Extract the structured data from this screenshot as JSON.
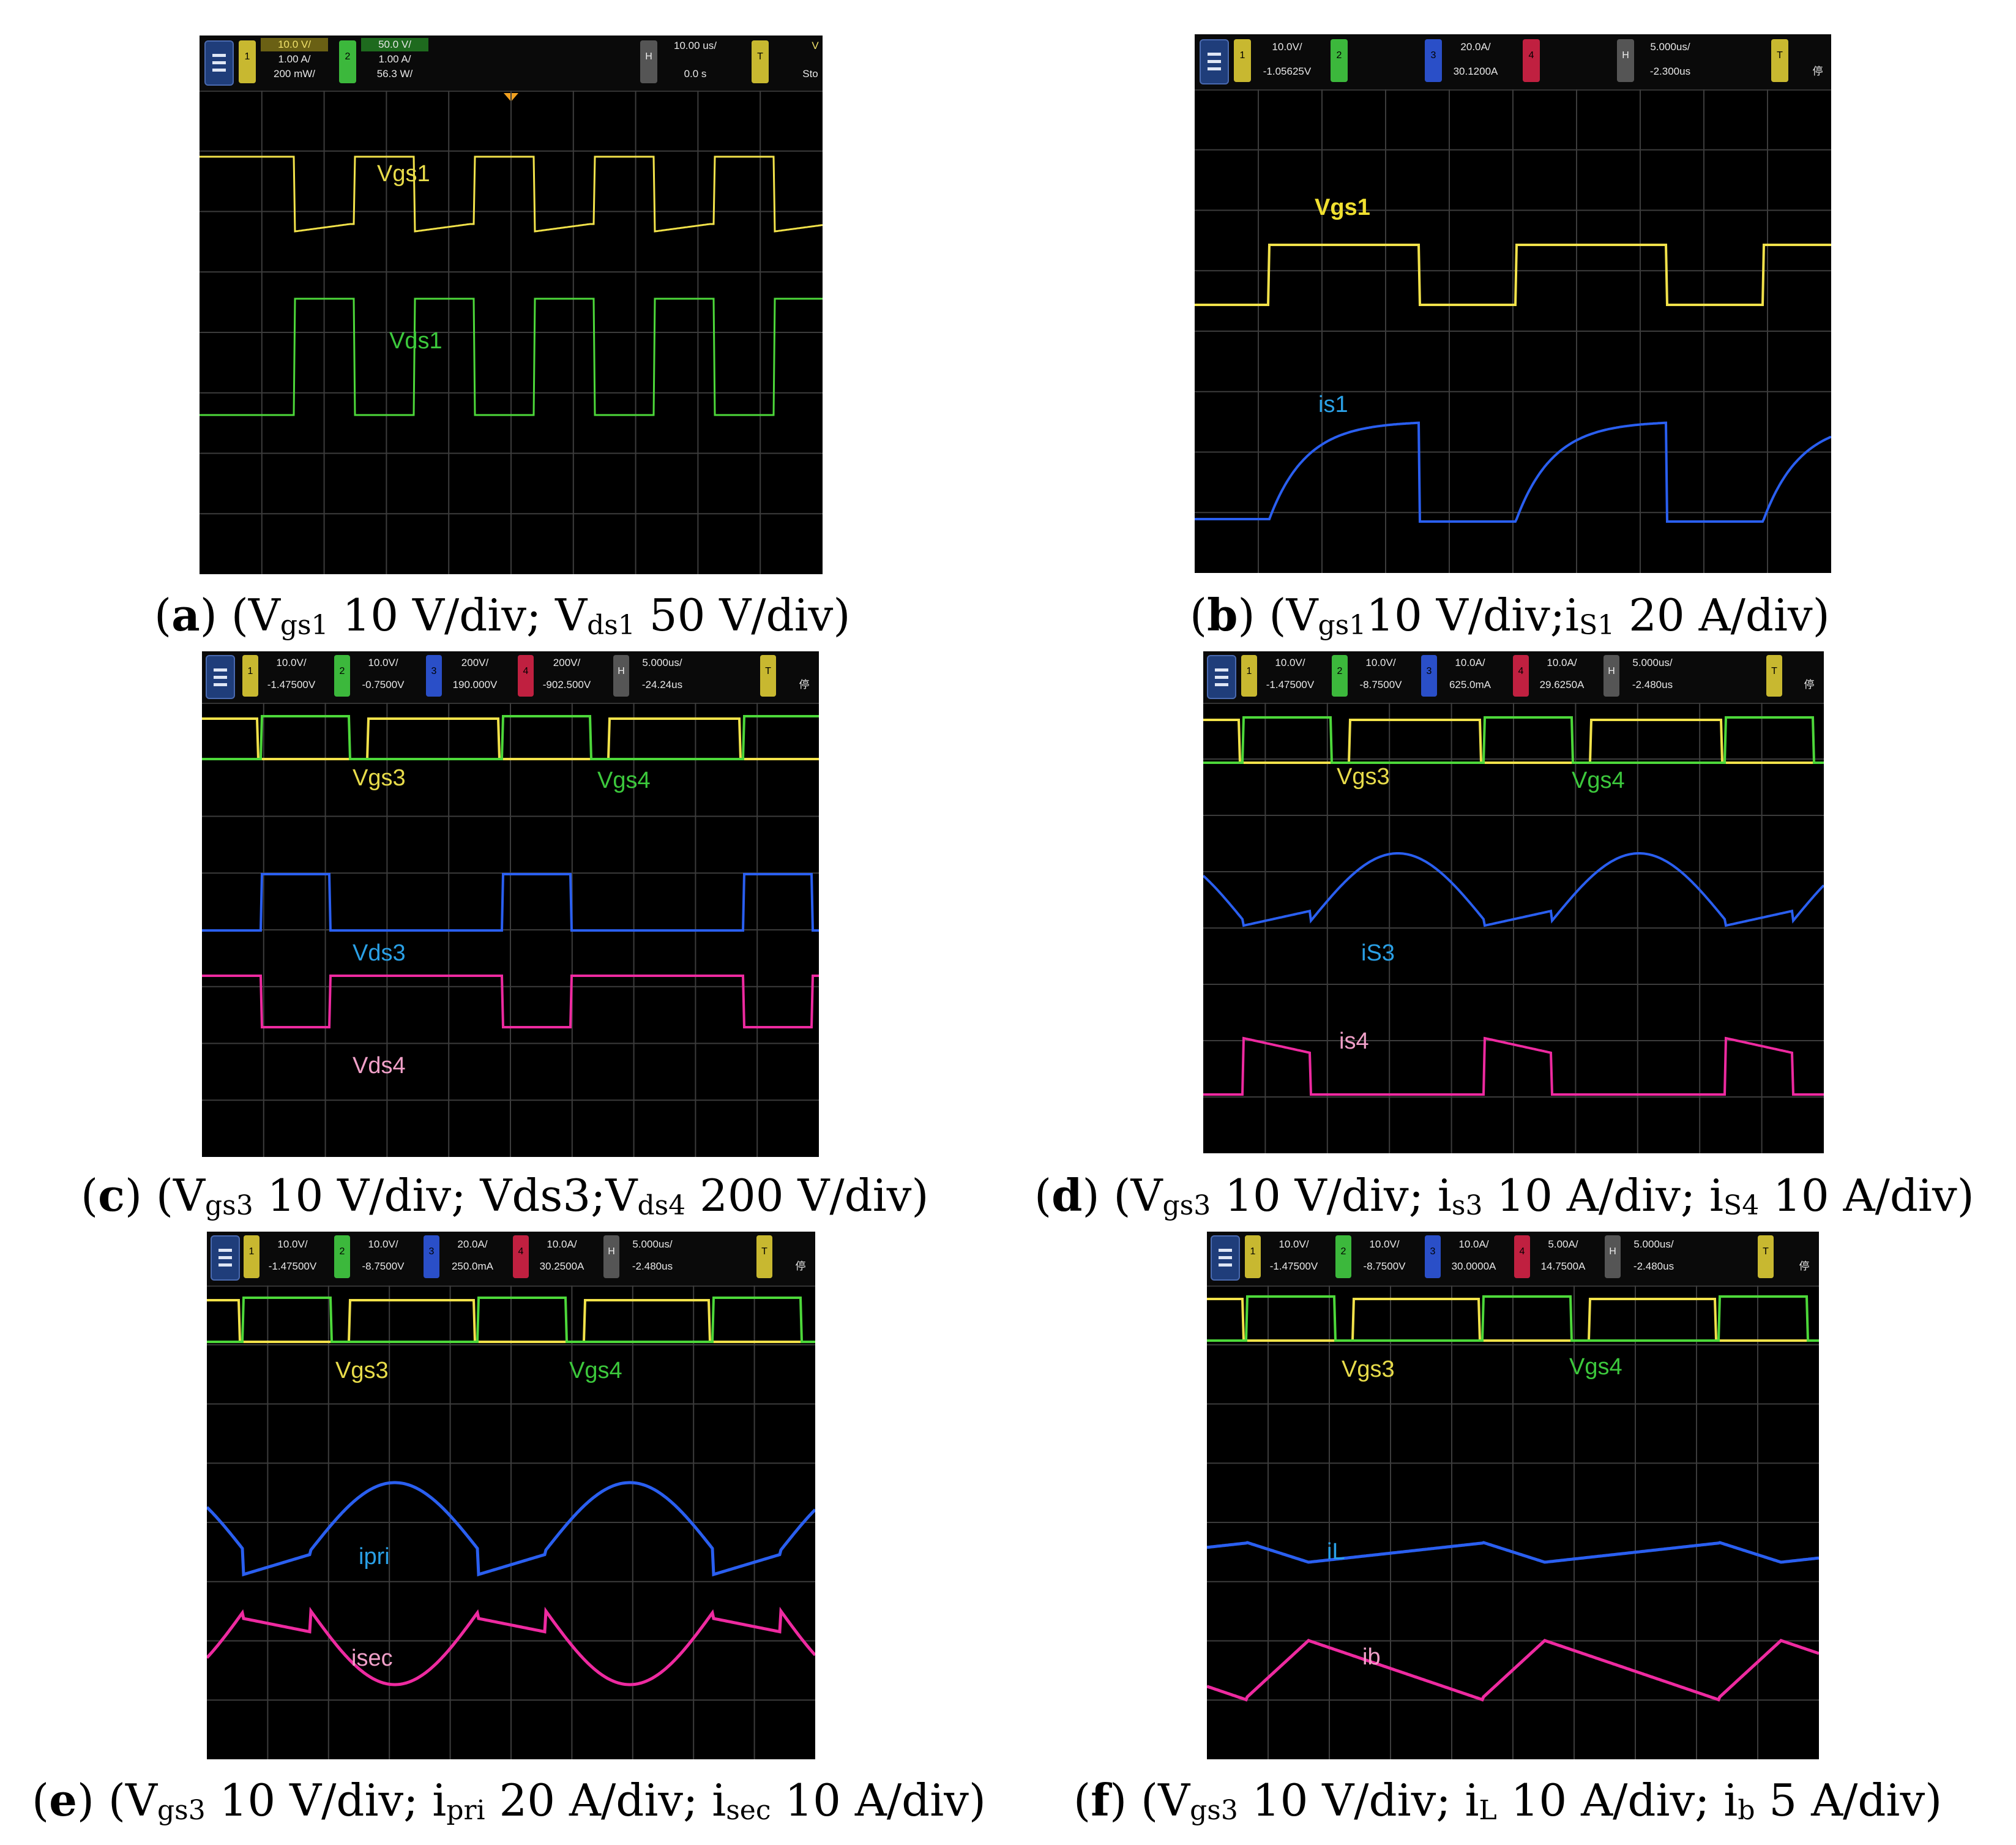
{
  "colors": {
    "yellow": "#f2e24a",
    "green": "#4dd83a",
    "blue": "#2a5ff0",
    "magenta": "#ee2aa0",
    "grid": "#3c3c3c",
    "label_yellow": "#e8dc4a",
    "label_green": "#3cc83c",
    "label_blue": "#2aa0e6",
    "label_pink": "#f0a0c8"
  },
  "panels": [
    {
      "id": "a",
      "header": {
        "ch1_scale": "10.0 V/",
        "ch1_offset": "1.00 A/",
        "ch1_extra": "200 mW/",
        "ch2_scale": "50.0 V/",
        "ch2_offset": "1.00 A/",
        "ch2_extra": "56.3 W/",
        "h_scale": "10.00 us/",
        "h_pos": "0.0 s",
        "trig": "V",
        "trig2": "Sto"
      },
      "labels": [
        "Vgs1",
        "Vds1"
      ],
      "caption": {
        "letter": "a",
        "pre": ") (V",
        "s1": "gs1",
        "m1": " 10 V/div; V",
        "s2": "ds1",
        "m2": " 50 V/div)"
      }
    },
    {
      "id": "b",
      "header": {
        "ch1_scale": "10.0V/",
        "ch1_offset": "-1.05625V",
        "ch3_scale": "20.0A/",
        "ch3_offset": "30.1200A",
        "h_scale": "5.000us/",
        "h_pos": "-2.300us",
        "trig2": "停"
      },
      "labels": [
        "Vgs1",
        "is1"
      ],
      "caption": {
        "letter": "b",
        "pre": ") (V",
        "s1": "gs1",
        "m1": "10 V/div;i",
        "s2": "S1",
        "m2": " 20 A/div)"
      }
    },
    {
      "id": "c",
      "header": {
        "ch1_scale": "10.0V/",
        "ch1_offset": "-1.47500V",
        "ch2_scale": "10.0V/",
        "ch2_offset": "-0.7500V",
        "ch3_scale": "200V/",
        "ch3_offset": "190.000V",
        "ch4_scale": "200V/",
        "ch4_offset": "-902.500V",
        "h_scale": "5.000us/",
        "h_pos": "-24.24us",
        "trig2": "停"
      },
      "labels": [
        "Vgs3",
        "Vgs4",
        "Vds3",
        "Vds4"
      ],
      "caption": {
        "letter": "c",
        "pre": ") (V",
        "s1": "gs3",
        "m1": " 10 V/div; Vds3;V",
        "s2": "ds4",
        "m2": " 200 V/div)"
      }
    },
    {
      "id": "d",
      "header": {
        "ch1_scale": "10.0V/",
        "ch1_offset": "-1.47500V",
        "ch2_scale": "10.0V/",
        "ch2_offset": "-8.7500V",
        "ch3_scale": "10.0A/",
        "ch3_offset": "625.0mA",
        "ch4_scale": "10.0A/",
        "ch4_offset": "29.6250A",
        "h_scale": "5.000us/",
        "h_pos": "-2.480us",
        "trig2": "停"
      },
      "labels": [
        "Vgs3",
        "Vgs4",
        "iS3",
        "is4"
      ],
      "caption": {
        "letter": "d",
        "pre": ") (V",
        "s1": "gs3",
        "m1": " 10 V/div; i",
        "s2": "s3",
        "m2": " 10 A/div; i",
        "s3": "S4",
        "m3": " 10 A/div)"
      }
    },
    {
      "id": "e",
      "header": {
        "ch1_scale": "10.0V/",
        "ch1_offset": "-1.47500V",
        "ch2_scale": "10.0V/",
        "ch2_offset": "-8.7500V",
        "ch3_scale": "20.0A/",
        "ch3_offset": "250.0mA",
        "ch4_scale": "10.0A/",
        "ch4_offset": "30.2500A",
        "h_scale": "5.000us/",
        "h_pos": "-2.480us",
        "trig2": "停"
      },
      "labels": [
        "Vgs3",
        "Vgs4",
        "ipri",
        "isec"
      ],
      "caption": {
        "letter": "e",
        "pre": ") (V",
        "s1": "gs3",
        "m1": " 10 V/div; i",
        "s2": "pri",
        "m2": " 20 A/div; i",
        "s3": "sec",
        "m3": " 10 A/div)"
      }
    },
    {
      "id": "f",
      "header": {
        "ch1_scale": "10.0V/",
        "ch1_offset": "-1.47500V",
        "ch2_scale": "10.0V/",
        "ch2_offset": "-8.7500V",
        "ch3_scale": "10.0A/",
        "ch3_offset": "30.0000A",
        "ch4_scale": "5.00A/",
        "ch4_offset": "14.7500A",
        "h_scale": "5.000us/",
        "h_pos": "-2.480us",
        "trig2": "停"
      },
      "labels": [
        "Vgs3",
        "Vgs4",
        "iL",
        "ib"
      ],
      "caption": {
        "letter": "f",
        "pre": ") (V",
        "s1": "gs3",
        "m1": " 10 V/div; i",
        "s2": "L",
        "m2": " 10 A/div; i",
        "s3": "b",
        "m3": " 5 A/div)"
      }
    }
  ],
  "chart_data": [
    {
      "type": "line",
      "panel": "a",
      "series": [
        {
          "name": "Vgs1",
          "shape": "square",
          "periods": 5,
          "duty": 0.5
        },
        {
          "name": "Vds1",
          "shape": "square",
          "periods": 5,
          "duty": 0.5
        }
      ]
    },
    {
      "type": "line",
      "panel": "b",
      "series": [
        {
          "name": "Vgs1",
          "shape": "square",
          "periods": 2.5,
          "duty": 0.5
        },
        {
          "name": "is1",
          "shape": "exponential-rise",
          "periods": 2.5,
          "duty": 0.5
        }
      ]
    },
    {
      "type": "line",
      "panel": "c",
      "series": [
        {
          "name": "Vgs3",
          "shape": "square"
        },
        {
          "name": "Vgs4",
          "shape": "square"
        },
        {
          "name": "Vds3",
          "shape": "square"
        },
        {
          "name": "Vds4",
          "shape": "square"
        }
      ]
    },
    {
      "type": "line",
      "panel": "d",
      "series": [
        {
          "name": "Vgs3",
          "shape": "square"
        },
        {
          "name": "Vgs4",
          "shape": "square"
        },
        {
          "name": "iS3",
          "shape": "resonant"
        },
        {
          "name": "is4",
          "shape": "ramp"
        }
      ]
    },
    {
      "type": "line",
      "panel": "e",
      "series": [
        {
          "name": "Vgs3",
          "shape": "square"
        },
        {
          "name": "Vgs4",
          "shape": "square"
        },
        {
          "name": "ipri",
          "shape": "sine"
        },
        {
          "name": "isec",
          "shape": "sine-inverted"
        }
      ]
    },
    {
      "type": "line",
      "panel": "f",
      "series": [
        {
          "name": "Vgs3",
          "shape": "square"
        },
        {
          "name": "Vgs4",
          "shape": "square"
        },
        {
          "name": "iL",
          "shape": "triangle"
        },
        {
          "name": "ib",
          "shape": "triangle"
        }
      ]
    }
  ]
}
